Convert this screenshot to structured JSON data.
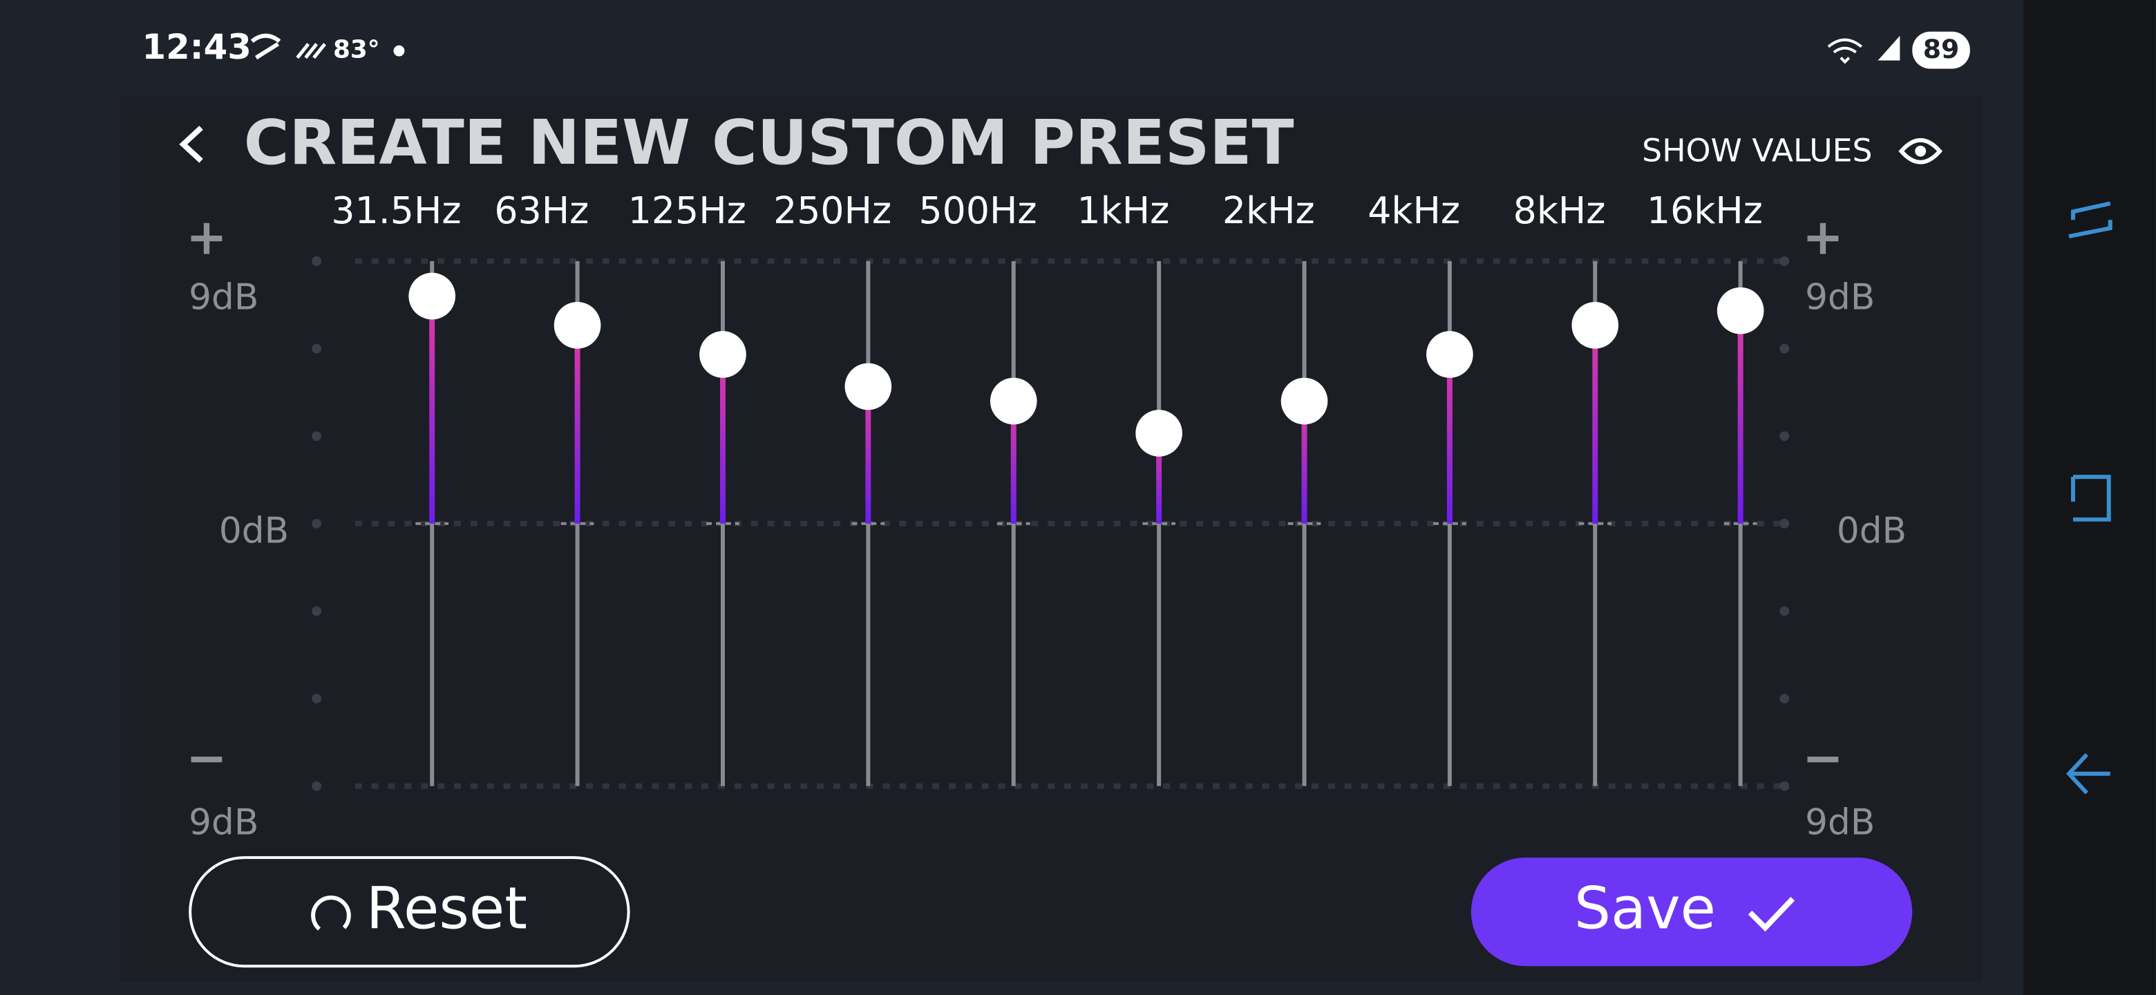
{
  "status_bar": {
    "time": "12:43",
    "temperature": "83°",
    "battery": "89"
  },
  "header": {
    "title": "CREATE NEW CUSTOM PRESET",
    "show_values": "SHOW VALUES"
  },
  "equalizer": {
    "plus": "+",
    "minus": "−",
    "top_label": "9dB",
    "mid_label": "0dB",
    "bottom_label": "9dB",
    "ylim": [
      -9,
      9
    ],
    "bands": [
      {
        "label": "31.5Hz",
        "value": 7.8
      },
      {
        "label": "63Hz",
        "value": 6.8
      },
      {
        "label": "125Hz",
        "value": 5.8
      },
      {
        "label": "250Hz",
        "value": 4.7
      },
      {
        "label": "500Hz",
        "value": 4.2
      },
      {
        "label": "1kHz",
        "value": 3.1
      },
      {
        "label": "2kHz",
        "value": 4.2
      },
      {
        "label": "4kHz",
        "value": 5.8
      },
      {
        "label": "8kHz",
        "value": 6.8
      },
      {
        "label": "16kHz",
        "value": 7.3
      }
    ]
  },
  "buttons": {
    "reset": "Reset",
    "save": "Save"
  }
}
